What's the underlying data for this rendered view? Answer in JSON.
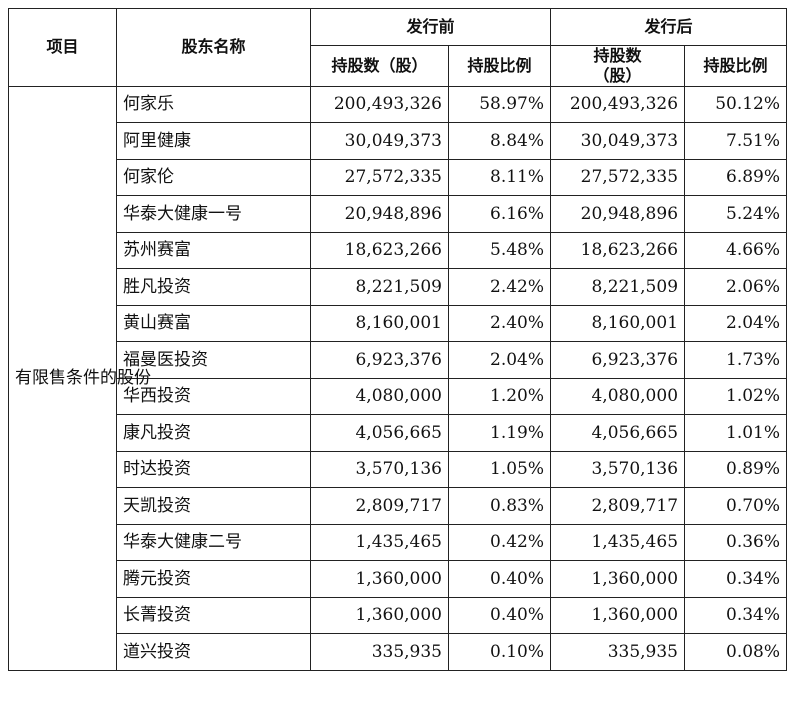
{
  "header": {
    "item": "项目",
    "shareholder": "股东名称",
    "before": "发行前",
    "after": "发行后",
    "before_shares": "持股数（股）",
    "before_ratio": "持股比例",
    "after_shares_line1": "持股数",
    "after_shares_line2": "（股）",
    "after_ratio": "持股比例"
  },
  "category": "有限售条件的股份",
  "rows": [
    {
      "name": "何家乐",
      "before_shares": "200,493,326",
      "before_ratio": "58.97%",
      "after_shares": "200,493,326",
      "after_ratio": "50.12%"
    },
    {
      "name": "阿里健康",
      "before_shares": "30,049,373",
      "before_ratio": "8.84%",
      "after_shares": "30,049,373",
      "after_ratio": "7.51%"
    },
    {
      "name": "何家伦",
      "before_shares": "27,572,335",
      "before_ratio": "8.11%",
      "after_shares": "27,572,335",
      "after_ratio": "6.89%"
    },
    {
      "name": "华泰大健康一号",
      "before_shares": "20,948,896",
      "before_ratio": "6.16%",
      "after_shares": "20,948,896",
      "after_ratio": "5.24%"
    },
    {
      "name": "苏州赛富",
      "before_shares": "18,623,266",
      "before_ratio": "5.48%",
      "after_shares": "18,623,266",
      "after_ratio": "4.66%"
    },
    {
      "name": "胜凡投资",
      "before_shares": "8,221,509",
      "before_ratio": "2.42%",
      "after_shares": "8,221,509",
      "after_ratio": "2.06%"
    },
    {
      "name": "黄山赛富",
      "before_shares": "8,160,001",
      "before_ratio": "2.40%",
      "after_shares": "8,160,001",
      "after_ratio": "2.04%"
    },
    {
      "name": "福曼医投资",
      "before_shares": "6,923,376",
      "before_ratio": "2.04%",
      "after_shares": "6,923,376",
      "after_ratio": "1.73%"
    },
    {
      "name": "华西投资",
      "before_shares": "4,080,000",
      "before_ratio": "1.20%",
      "after_shares": "4,080,000",
      "after_ratio": "1.02%"
    },
    {
      "name": "康凡投资",
      "before_shares": "4,056,665",
      "before_ratio": "1.19%",
      "after_shares": "4,056,665",
      "after_ratio": "1.01%"
    },
    {
      "name": "时达投资",
      "before_shares": "3,570,136",
      "before_ratio": "1.05%",
      "after_shares": "3,570,136",
      "after_ratio": "0.89%"
    },
    {
      "name": "天凯投资",
      "before_shares": "2,809,717",
      "before_ratio": "0.83%",
      "after_shares": "2,809,717",
      "after_ratio": "0.70%"
    },
    {
      "name": "华泰大健康二号",
      "before_shares": "1,435,465",
      "before_ratio": "0.42%",
      "after_shares": "1,435,465",
      "after_ratio": "0.36%"
    },
    {
      "name": "腾元投资",
      "before_shares": "1,360,000",
      "before_ratio": "0.40%",
      "after_shares": "1,360,000",
      "after_ratio": "0.34%"
    },
    {
      "name": "长菁投资",
      "before_shares": "1,360,000",
      "before_ratio": "0.40%",
      "after_shares": "1,360,000",
      "after_ratio": "0.34%"
    },
    {
      "name": "道兴投资",
      "before_shares": "335,935",
      "before_ratio": "0.10%",
      "after_shares": "335,935",
      "after_ratio": "0.08%"
    }
  ]
}
